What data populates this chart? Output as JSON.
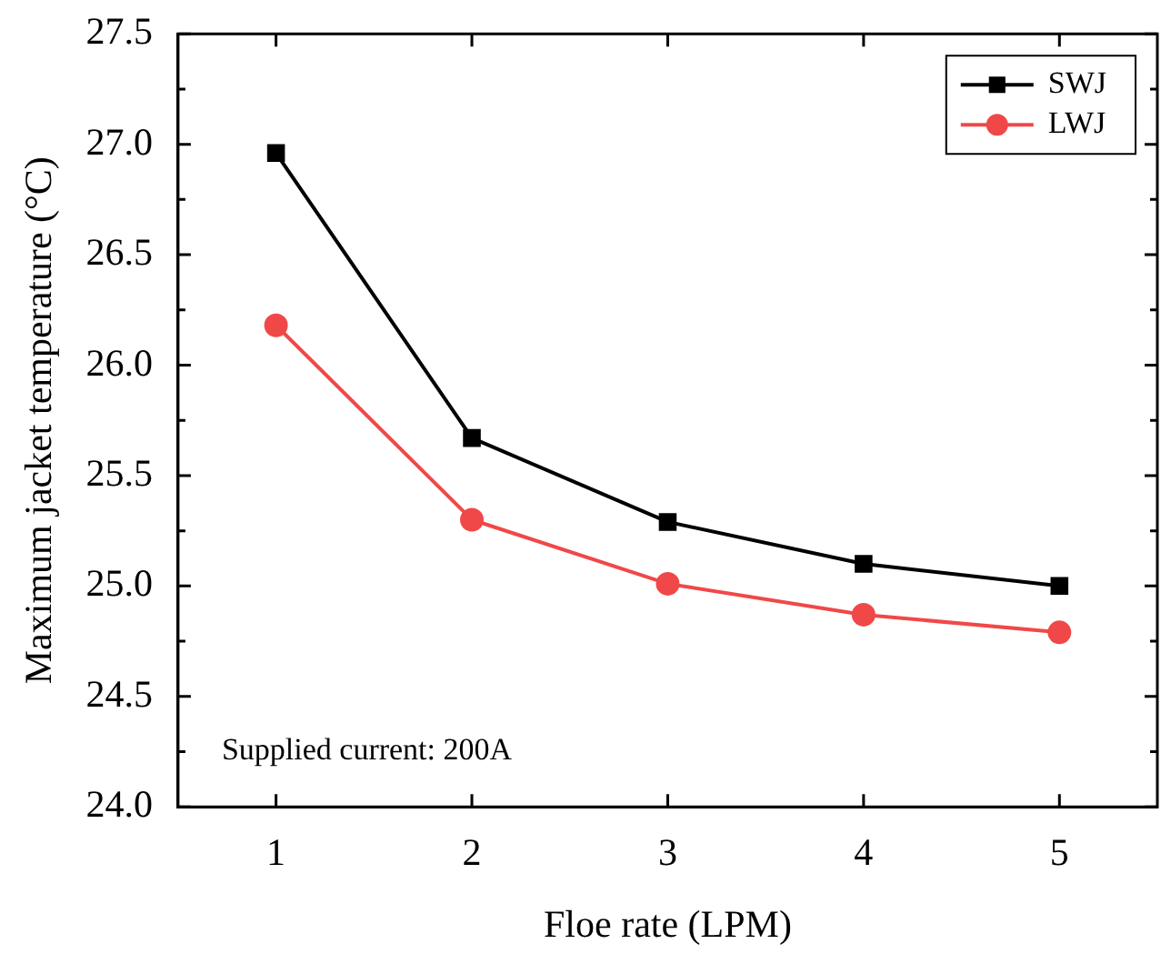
{
  "chart_data": {
    "type": "line",
    "xlabel": "Floe rate (LPM)",
    "ylabel": "Maximum jacket temperature (°C)",
    "x": [
      1,
      2,
      3,
      4,
      5
    ],
    "series": [
      {
        "name": "SWJ",
        "color": "#000000",
        "marker": "square",
        "values": [
          26.96,
          25.67,
          25.29,
          25.1,
          25.0
        ]
      },
      {
        "name": "LWJ",
        "color": "#f04848",
        "marker": "circle",
        "values": [
          26.18,
          25.3,
          25.01,
          24.87,
          24.79
        ]
      }
    ],
    "xlim": [
      0.5,
      5.5
    ],
    "xticks": [
      1,
      2,
      3,
      4,
      5
    ],
    "ylim": [
      24.0,
      27.5
    ],
    "yticks": [
      {
        "value": 24.0,
        "label": "24.0"
      },
      {
        "value": 24.25,
        "label": null
      },
      {
        "value": 24.5,
        "label": "24.5"
      },
      {
        "value": 24.75,
        "label": null
      },
      {
        "value": 25.0,
        "label": "25.0"
      },
      {
        "value": 25.25,
        "label": null
      },
      {
        "value": 25.5,
        "label": "25.5"
      },
      {
        "value": 25.75,
        "label": null
      },
      {
        "value": 26.0,
        "label": "26.0"
      },
      {
        "value": 26.25,
        "label": null
      },
      {
        "value": 26.5,
        "label": "26.5"
      },
      {
        "value": 26.75,
        "label": null
      },
      {
        "value": 27.0,
        "label": "27.0"
      },
      {
        "value": 27.25,
        "label": null
      },
      {
        "value": 27.5,
        "label": "27.5"
      }
    ],
    "annotations": [
      "Supplied current: 200A"
    ],
    "legend": "top right",
    "grid": false,
    "line_style": "solid"
  }
}
